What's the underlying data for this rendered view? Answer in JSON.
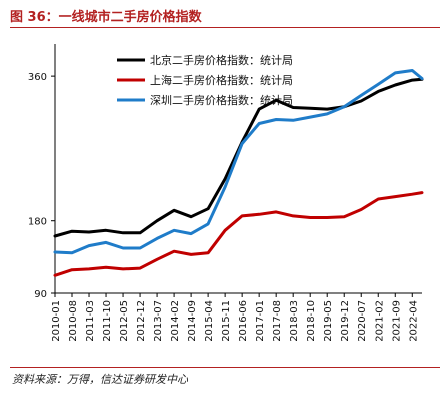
{
  "title": "图 36：一线城市二手房价格指数",
  "source": "资料来源：万得，信达证券研发中心",
  "chart_data": {
    "type": "line",
    "title": "图 36：一线城市二手房价格指数",
    "xlabel": "",
    "ylabel": "",
    "ylim": [
      90,
      400
    ],
    "yticks": [
      90,
      180,
      360
    ],
    "grid": false,
    "legend_position": "top-left",
    "x_tick_labels": [
      "2010-01",
      "2010-08",
      "2011-03",
      "2011-10",
      "2012-05",
      "2012-12",
      "2013-07",
      "2014-02",
      "2014-09",
      "2015-04",
      "2015-11",
      "2016-06",
      "2017-01",
      "2017-08",
      "2018-03",
      "2018-10",
      "2019-05",
      "2019-12",
      "2020-07",
      "2021-02",
      "2021-09",
      "2022-04"
    ],
    "x": [
      "2010-01",
      "2010-08",
      "2011-03",
      "2011-10",
      "2012-05",
      "2012-12",
      "2013-07",
      "2014-02",
      "2014-09",
      "2015-04",
      "2015-11",
      "2016-06",
      "2017-01",
      "2017-08",
      "2018-03",
      "2018-10",
      "2019-05",
      "2019-12",
      "2020-07",
      "2021-02",
      "2021-09",
      "2022-04",
      "2022-08"
    ],
    "series": [
      {
        "name": "北京二手房价格指数：统计局",
        "color": "#000000",
        "values": [
          161,
          167,
          166,
          168,
          165,
          165,
          180,
          193,
          185,
          195,
          232,
          278,
          319,
          330,
          321,
          320,
          319,
          322,
          329,
          341,
          349,
          355,
          356
        ]
      },
      {
        "name": "上海二手房价格指数：统计局",
        "color": "#c00000",
        "values": [
          112,
          119,
          120,
          122,
          120,
          121,
          132,
          142,
          138,
          140,
          168,
          186,
          188,
          191,
          186,
          184,
          184,
          185,
          194,
          207,
          210,
          213,
          215
        ]
      },
      {
        "name": "深圳二手房价格指数：统计局",
        "color": "#1f7cc9",
        "values": [
          141,
          140,
          149,
          153,
          146,
          146,
          158,
          168,
          164,
          176,
          222,
          276,
          301,
          306,
          305,
          309,
          313,
          322,
          336,
          350,
          364,
          367,
          357
        ]
      }
    ]
  }
}
